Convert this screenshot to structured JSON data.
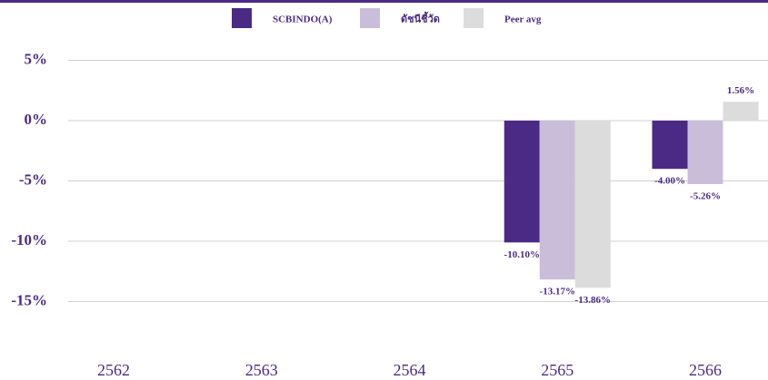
{
  "chart_data": {
    "type": "bar",
    "categories": [
      "2562",
      "2563",
      "2564",
      "2565",
      "2566"
    ],
    "series": [
      {
        "name": "SCBINDO(A)",
        "color": "#4b2a86",
        "values": [
          null,
          null,
          null,
          -10.1,
          -4.0
        ],
        "value_labels": [
          null,
          null,
          null,
          "-10.10%",
          "-4.00%"
        ]
      },
      {
        "name": "ดัชนีชี้วัด",
        "color": "#c9bdd9",
        "values": [
          null,
          null,
          null,
          -13.17,
          -5.26
        ],
        "value_labels": [
          null,
          null,
          null,
          "-13.17%",
          "-5.26%"
        ]
      },
      {
        "name": "Peer avg",
        "color": "#dcdcdc",
        "values": [
          null,
          null,
          null,
          -13.86,
          1.56
        ],
        "value_labels": [
          null,
          null,
          null,
          "-13.86%",
          "1.56%"
        ]
      }
    ],
    "ylim": [
      -20,
      10
    ],
    "yticks": [
      {
        "value": 5,
        "label": "5%"
      },
      {
        "value": 0,
        "label": "0%"
      },
      {
        "value": -5,
        "label": "-5%"
      },
      {
        "value": -10,
        "label": "-10%"
      },
      {
        "value": -15,
        "label": "-15%"
      }
    ],
    "grid": true
  }
}
